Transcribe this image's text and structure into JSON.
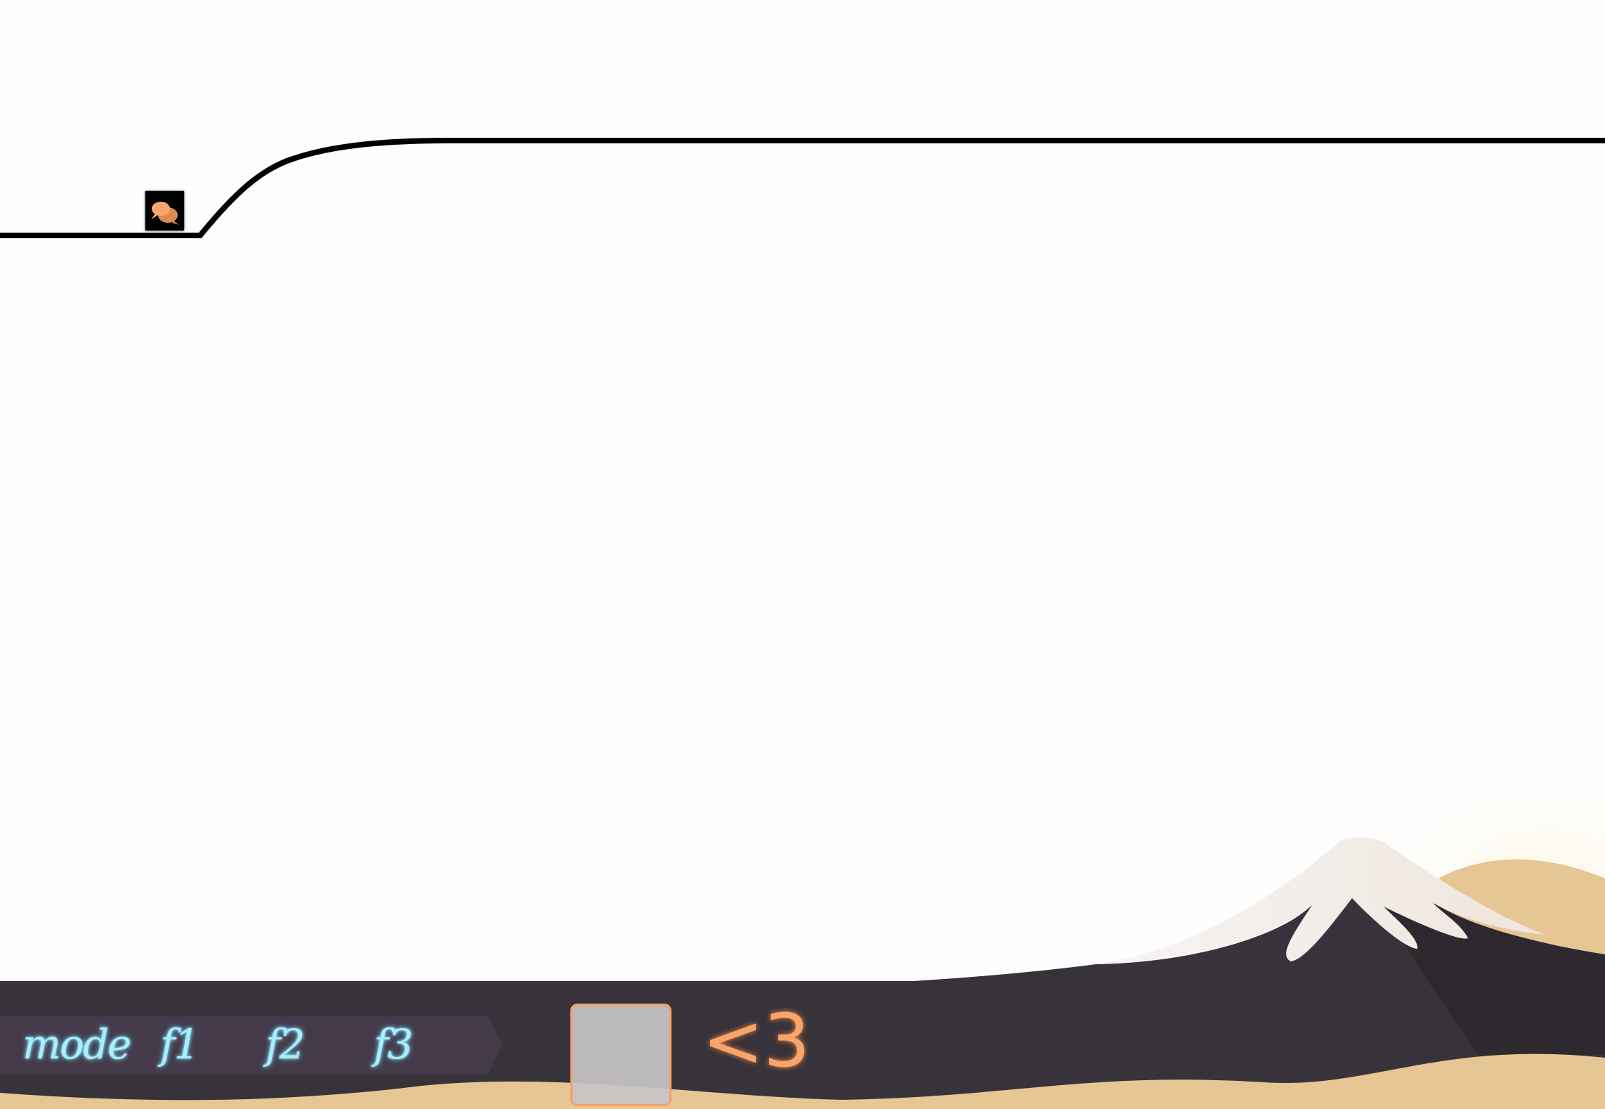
{
  "hud": {
    "keys": [
      {
        "label": "mode"
      },
      {
        "label": "f1"
      },
      {
        "label": "f2"
      },
      {
        "label": "f3"
      }
    ],
    "lives_text": "<3",
    "inventory_slot": {
      "empty": true
    }
  },
  "level": {
    "checkpoint_icon": "chat-bubbles-icon"
  },
  "colors": {
    "background": "#fefefe",
    "track": "#000000",
    "ground_dark": "#38323a",
    "strip": "#443a4a",
    "sand": "#e6c693",
    "key_glow": "#a8eefc",
    "accent_orange": "#f7a56a",
    "snow": "#f6f4f4"
  }
}
